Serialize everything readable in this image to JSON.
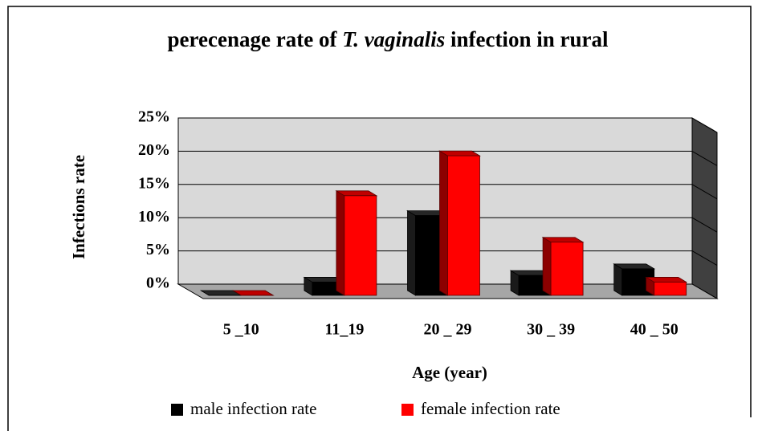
{
  "chart_data": {
    "type": "bar3d",
    "title": [
      "perecenage rate of",
      "T. vaginalis",
      "infection in rural"
    ],
    "xlabel": "Age (year)",
    "ylabel": "Infections rate",
    "categories": [
      "5 _10",
      "11_19",
      "20 _ 29",
      "30 _ 39",
      "40 _ 50"
    ],
    "series": [
      {
        "name": "male infection rate",
        "color": "#000000",
        "values": [
          0,
          2,
          12,
          3,
          4
        ]
      },
      {
        "name": "female infection rate",
        "color": "#ff0000",
        "values": [
          0,
          15,
          21,
          8,
          2
        ]
      }
    ],
    "ylim": [
      0,
      25
    ],
    "yticks": [
      {
        "value": 0,
        "label": "0%"
      },
      {
        "value": 5,
        "label": "5%"
      },
      {
        "value": 10,
        "label": "10%"
      },
      {
        "value": 15,
        "label": "15%"
      },
      {
        "value": 20,
        "label": "20%"
      },
      {
        "value": 25,
        "label": "25%"
      }
    ],
    "grid": true,
    "legend": "bottom"
  }
}
